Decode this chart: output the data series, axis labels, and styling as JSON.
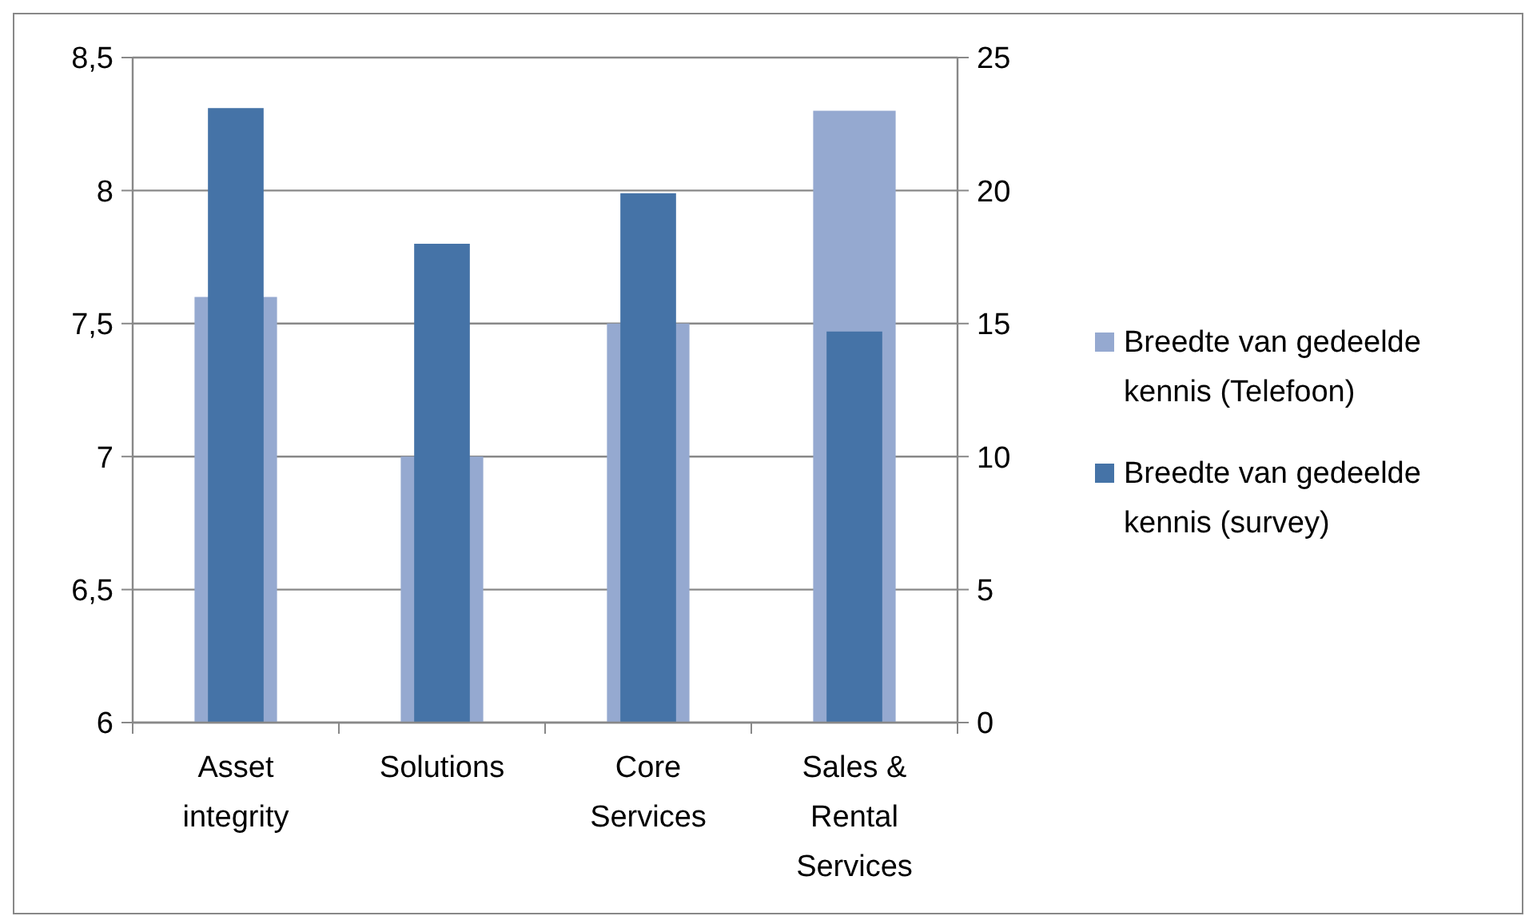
{
  "chart_data": {
    "type": "bar",
    "categories": [
      "Asset integrity",
      "Solutions",
      "Core Services",
      "Sales & Rental Services"
    ],
    "series": [
      {
        "name": "Breedte van gedeelde kennis (Telefoon)",
        "color": "#95a9d0",
        "values": [
          7.6,
          7.0,
          7.5,
          8.3
        ]
      },
      {
        "name": "Breedte van gedeelde kennis (survey)",
        "color": "#4573a7",
        "values": [
          23.1,
          18.0,
          19.9,
          14.7
        ],
        "axis": "y2"
      }
    ],
    "ylim": [
      6,
      8.5
    ],
    "yticks": [
      6,
      {
        "value": 6.5,
        "label": "6,5"
      },
      7,
      {
        "value": 7.5,
        "label": "7,5"
      },
      8,
      {
        "value": 8.5,
        "label": "8,5"
      }
    ],
    "y2lim": [
      0,
      25
    ],
    "y2ticks": [
      0,
      5,
      10,
      15,
      20,
      25
    ],
    "grid": "y",
    "legend": "right"
  }
}
